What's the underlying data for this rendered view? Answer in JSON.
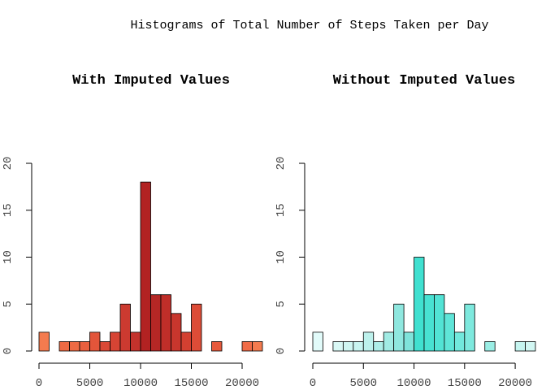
{
  "figure": {
    "title": "Histograms of Total Number of Steps Taken per Day"
  },
  "chart_data": [
    {
      "type": "bar",
      "title": "With Imputed Values",
      "xlabel": "",
      "ylabel": "",
      "bin_width": 1000,
      "x_bins_start": [
        0,
        1000,
        2000,
        3000,
        4000,
        5000,
        6000,
        7000,
        8000,
        9000,
        10000,
        11000,
        12000,
        13000,
        14000,
        15000,
        16000,
        17000,
        18000,
        19000,
        20000,
        21000
      ],
      "values": [
        2,
        0,
        1,
        1,
        1,
        2,
        1,
        2,
        5,
        2,
        18,
        6,
        6,
        4,
        2,
        5,
        0,
        1,
        0,
        0,
        1,
        1
      ],
      "xlim": [
        0,
        22000
      ],
      "ylim": [
        0,
        20
      ],
      "x_ticks": [
        0,
        5000,
        10000,
        15000,
        20000
      ],
      "y_ticks": [
        0,
        5,
        10,
        15,
        20
      ],
      "grid": false,
      "colors": [
        "#F47B4F",
        "#F47B4F",
        "#EE6A44",
        "#EE6A44",
        "#EA5F3E",
        "#E3553A",
        "#DA4936",
        "#D64434",
        "#CC3A30",
        "#C3322C",
        "#B22222",
        "#B52725",
        "#BF2E29",
        "#C8362D",
        "#D34031",
        "#DD4C37",
        "#E35639",
        "#E6593C",
        "#EA5F3E",
        "#EE6A44",
        "#F06C48",
        "#F47B4F"
      ]
    },
    {
      "type": "bar",
      "title": "Without Imputed Values",
      "xlabel": "",
      "ylabel": "",
      "bin_width": 1000,
      "x_bins_start": [
        0,
        1000,
        2000,
        3000,
        4000,
        5000,
        6000,
        7000,
        8000,
        9000,
        10000,
        11000,
        12000,
        13000,
        14000,
        15000,
        16000,
        17000,
        18000,
        19000,
        20000,
        21000
      ],
      "values": [
        2,
        0,
        1,
        1,
        1,
        2,
        1,
        2,
        5,
        2,
        10,
        6,
        6,
        4,
        2,
        5,
        0,
        1,
        0,
        0,
        1,
        1
      ],
      "xlim": [
        0,
        22000
      ],
      "ylim": [
        0,
        20
      ],
      "x_ticks": [
        0,
        5000,
        10000,
        15000,
        20000
      ],
      "y_ticks": [
        0,
        5,
        10,
        15,
        20
      ],
      "grid": false,
      "colors": [
        "#E2FBFA",
        "#E2FBFA",
        "#D9F8F5",
        "#D0F6F2",
        "#C9F4F0",
        "#BDF1EC",
        "#AEEEE8",
        "#A1EBE4",
        "#8FE7DF",
        "#7FE3DA",
        "#40E0D0",
        "#48E1D2",
        "#52E3D5",
        "#5FE5D8",
        "#72E8DC",
        "#7EE9DE",
        "#8CEBE1",
        "#9BEEE5",
        "#A9F0E8",
        "#B7F2EC",
        "#C6F5F0",
        "#D2F7F3"
      ]
    }
  ]
}
